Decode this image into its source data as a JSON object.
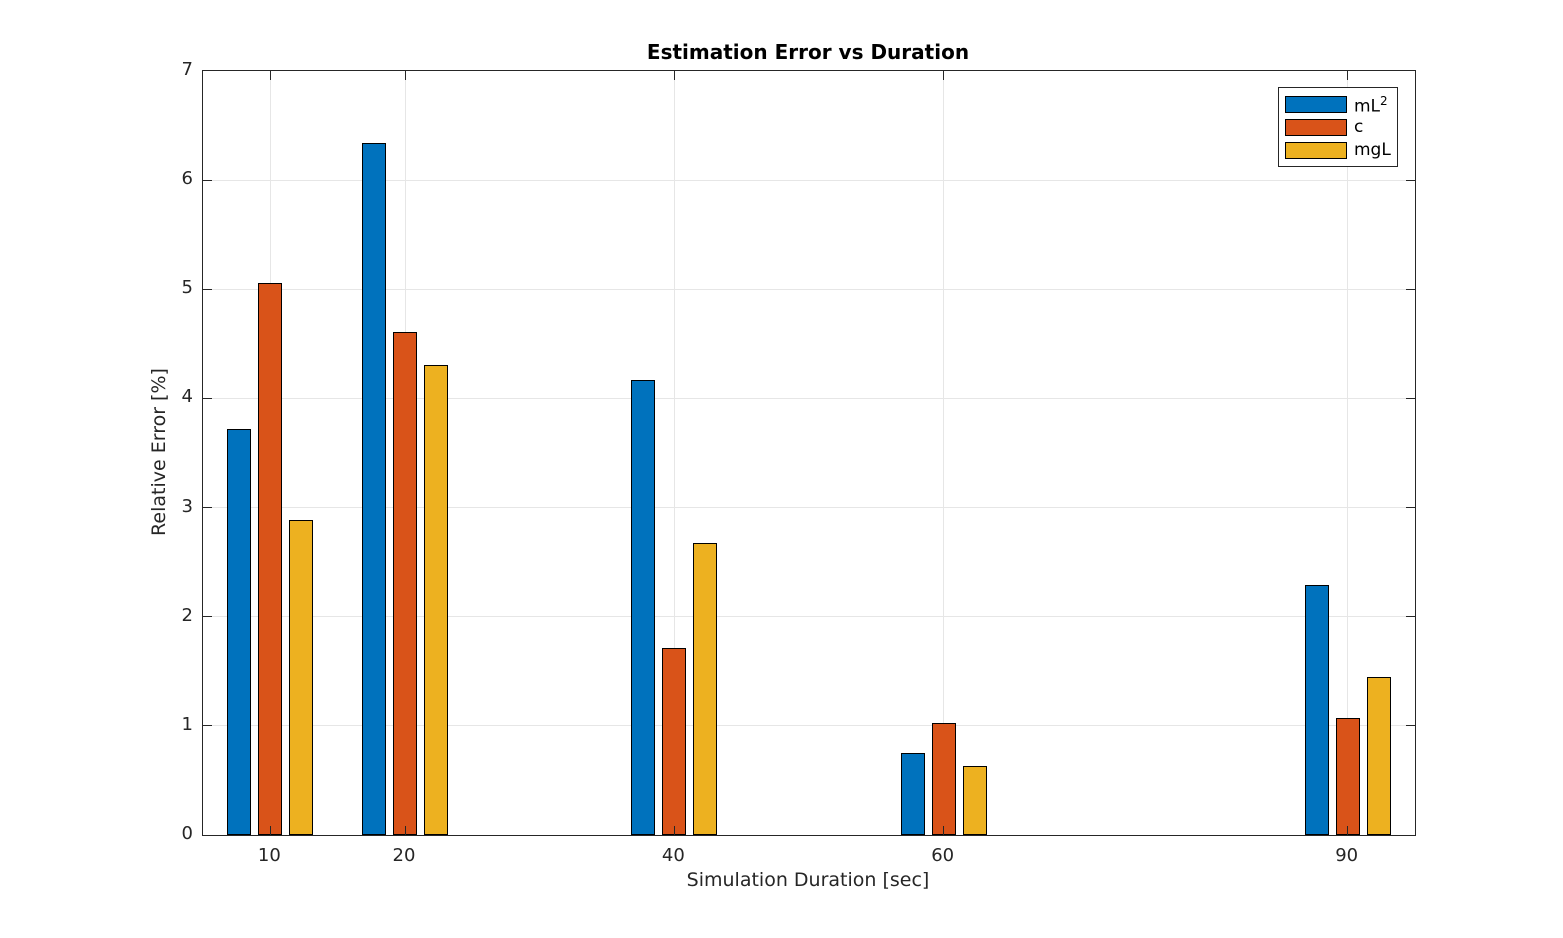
{
  "chart_data": {
    "type": "bar",
    "title": "Estimation Error vs Duration",
    "xlabel": "Simulation Duration [sec]",
    "ylabel": "Relative Error [%]",
    "categories": [
      10,
      20,
      40,
      60,
      90
    ],
    "x_tick_labels": [
      "10",
      "20",
      "40",
      "60",
      "90"
    ],
    "y_tick_labels": [
      "0",
      "1",
      "2",
      "3",
      "4",
      "5",
      "6",
      "7"
    ],
    "yticks": [
      0,
      1,
      2,
      3,
      4,
      5,
      6,
      7
    ],
    "xlim": [
      5,
      95
    ],
    "ylim": [
      0,
      7
    ],
    "grid": true,
    "legend_position": "top-right",
    "series": [
      {
        "name": "mL^2",
        "legend_label": "mL",
        "legend_sup": "2",
        "color": "#0072BD",
        "values": [
          3.72,
          6.34,
          4.17,
          0.75,
          2.29
        ]
      },
      {
        "name": "c",
        "legend_label": "c",
        "legend_sup": "",
        "color": "#D95319",
        "values": [
          5.06,
          4.61,
          1.71,
          1.03,
          1.07
        ]
      },
      {
        "name": "mgL",
        "legend_label": "mgL",
        "legend_sup": "",
        "color": "#EDB120",
        "values": [
          2.89,
          4.31,
          2.68,
          0.63,
          1.45
        ]
      }
    ]
  },
  "style": {
    "axis_color": "#262626",
    "grid_color": "#e6e6e6",
    "bar_edge_color": "#000000",
    "background": "#ffffff"
  }
}
